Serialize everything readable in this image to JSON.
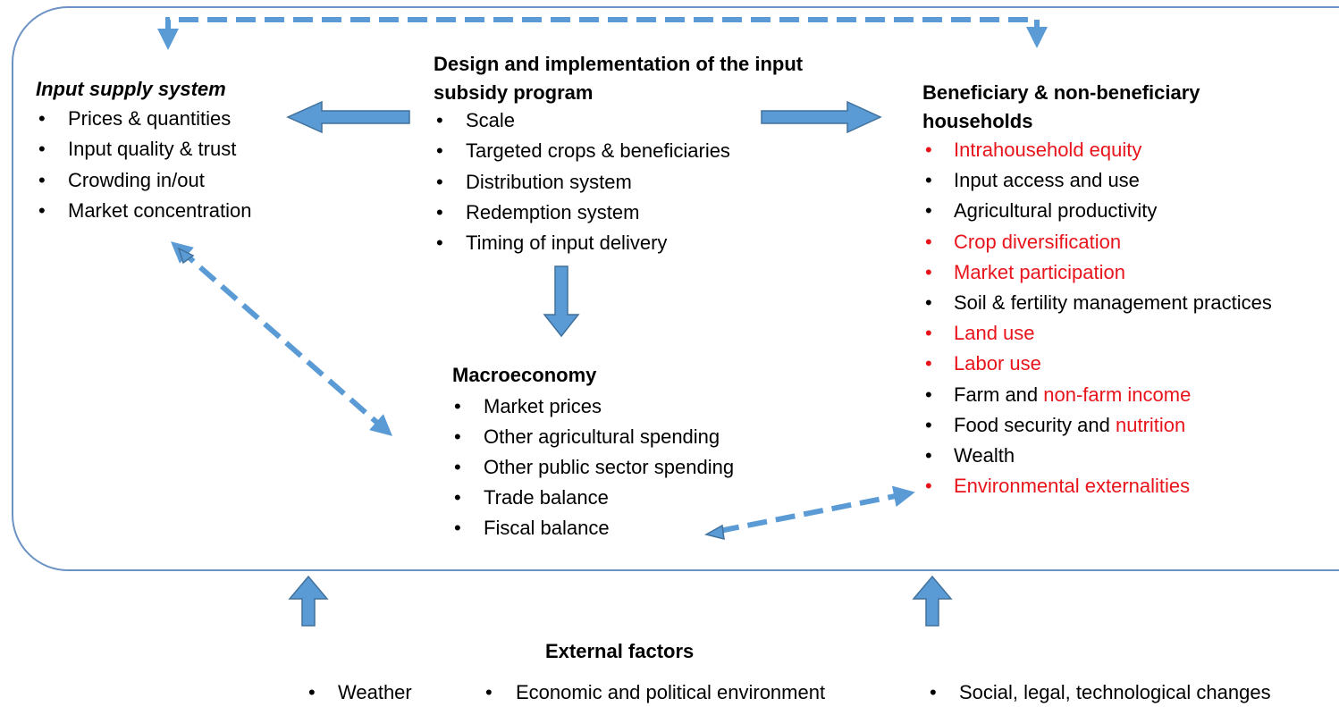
{
  "input_supply": {
    "title": "Input supply system",
    "items": [
      "Prices & quantities",
      "Input quality & trust",
      "Crowding in/out",
      "Market concentration"
    ]
  },
  "design": {
    "title": "Design and implementation of the input subsidy program",
    "items": [
      "Scale",
      "Targeted crops & beneficiaries",
      "Distribution system",
      "Redemption system",
      "Timing of input delivery"
    ]
  },
  "macroeconomy": {
    "title": "Macroeconomy",
    "items": [
      "Market prices",
      "Other agricultural spending",
      "Other public sector spending",
      "Trade balance",
      "Fiscal balance"
    ]
  },
  "households": {
    "title": "Beneficiary & non-beneficiary households",
    "items": [
      {
        "highlight": true,
        "parts": [
          {
            "text": "Intrahousehold equity",
            "highlight": true
          }
        ]
      },
      {
        "highlight": false,
        "parts": [
          {
            "text": "Input access and use",
            "highlight": false
          }
        ]
      },
      {
        "highlight": false,
        "parts": [
          {
            "text": "Agricultural productivity",
            "highlight": false
          }
        ]
      },
      {
        "highlight": true,
        "parts": [
          {
            "text": "Crop diversification",
            "highlight": true
          }
        ]
      },
      {
        "highlight": true,
        "parts": [
          {
            "text": "Market participation",
            "highlight": true
          }
        ]
      },
      {
        "highlight": false,
        "parts": [
          {
            "text": "Soil & fertility management practices",
            "highlight": false
          }
        ]
      },
      {
        "highlight": true,
        "parts": [
          {
            "text": "Land use",
            "highlight": true
          }
        ]
      },
      {
        "highlight": true,
        "parts": [
          {
            "text": "Labor use",
            "highlight": true
          }
        ]
      },
      {
        "highlight": false,
        "parts": [
          {
            "text": "Farm and ",
            "highlight": false
          },
          {
            "text": "non-farm income",
            "highlight": true
          }
        ]
      },
      {
        "highlight": false,
        "parts": [
          {
            "text": "Food security and ",
            "highlight": false
          },
          {
            "text": "nutrition",
            "highlight": true
          }
        ]
      },
      {
        "highlight": false,
        "parts": [
          {
            "text": "Wealth",
            "highlight": false
          }
        ]
      },
      {
        "highlight": true,
        "parts": [
          {
            "text": "Environmental externalities",
            "highlight": true
          }
        ]
      }
    ]
  },
  "external": {
    "title": "External factors",
    "items": [
      "Weather",
      "Economic and political environment",
      "Social, legal, technological changes"
    ]
  }
}
